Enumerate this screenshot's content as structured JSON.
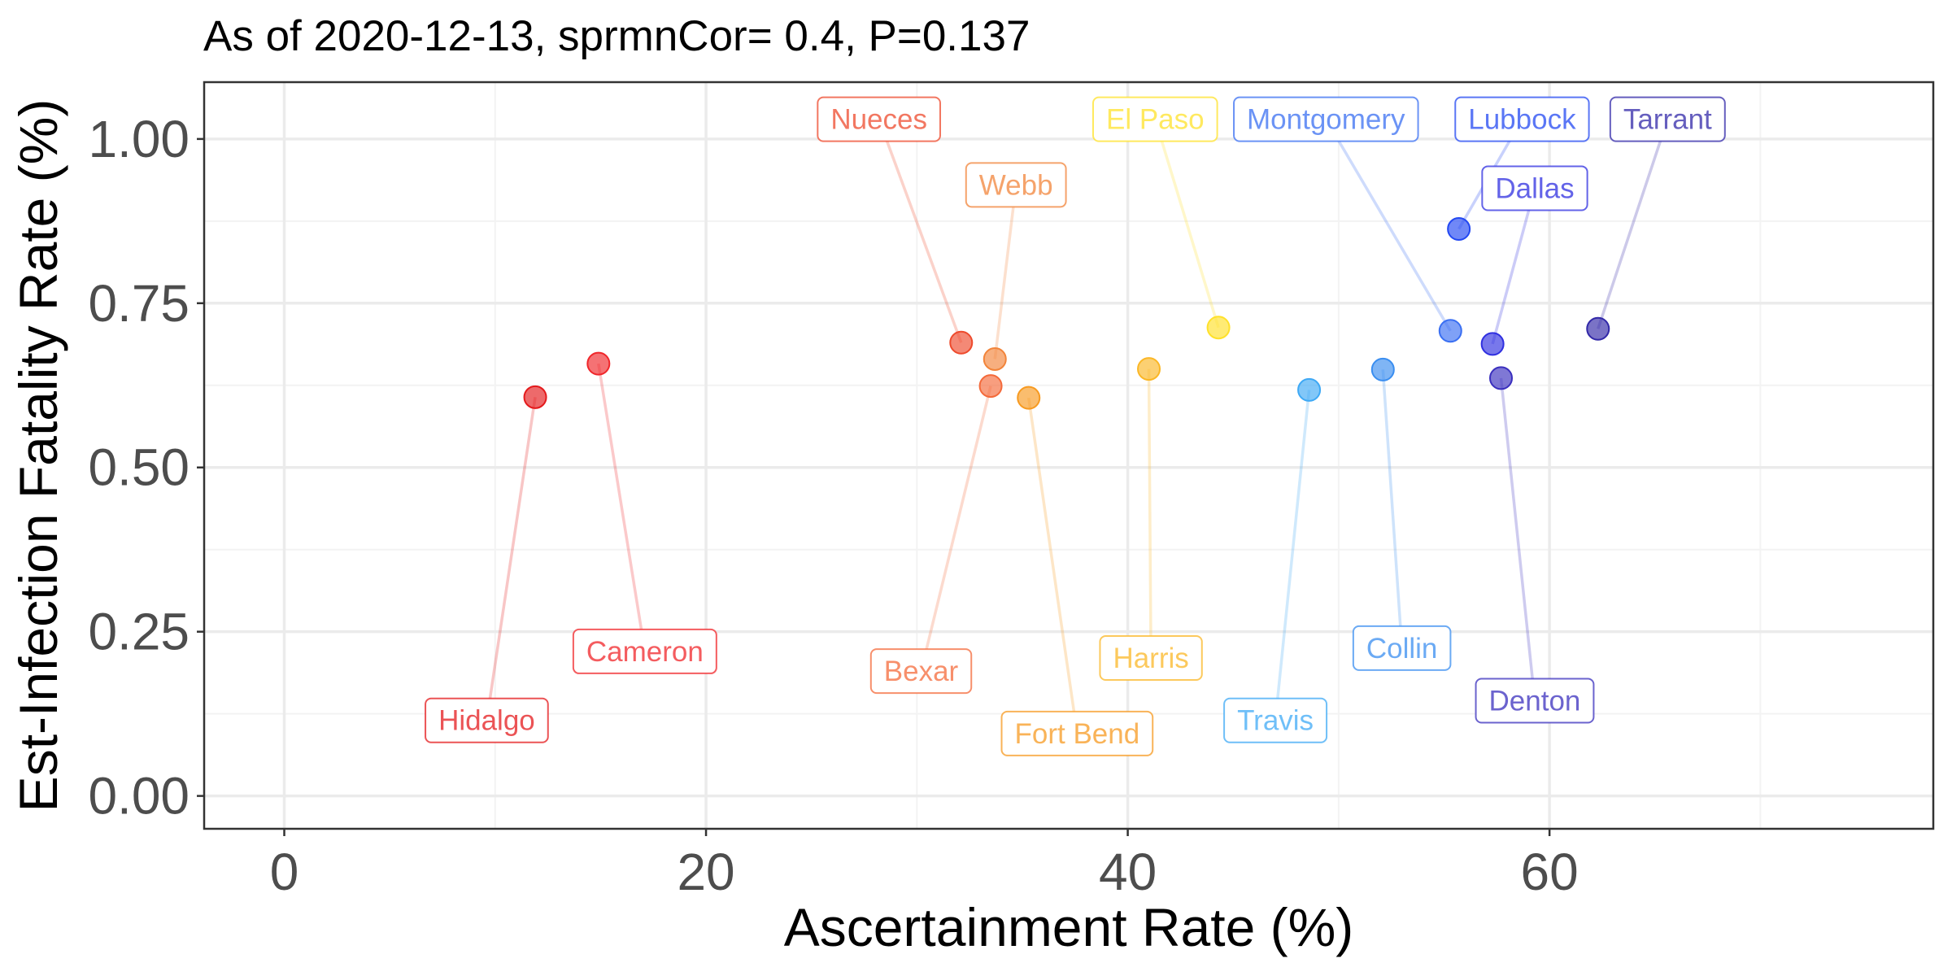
{
  "chart_data": {
    "type": "scatter",
    "title": "As of 2020-12-13, sprmnCor= 0.4, P=0.137",
    "xlabel": "Ascertainment Rate (%)",
    "ylabel": "Est-Infection Fatality Rate (%)",
    "xlim": [
      -3.8,
      78.2
    ],
    "ylim": [
      -0.05,
      1.0865
    ],
    "x_ticks": [
      0,
      20,
      40,
      60
    ],
    "x_tick_labels": [
      "0",
      "20",
      "40",
      "60"
    ],
    "y_ticks": [
      0,
      0.25,
      0.5,
      0.75,
      1.0
    ],
    "y_tick_labels": [
      "0.00",
      "0.25",
      "0.50",
      "0.75",
      "1.00"
    ],
    "grid": true,
    "legend": "none",
    "points": [
      {
        "name": "Hidalgo",
        "x": 11.9,
        "y": 0.607,
        "color": "#e41a1c",
        "label_x": 9.6,
        "label_y": 0.115
      },
      {
        "name": "Cameron",
        "x": 14.9,
        "y": 0.658,
        "color": "#f0262a",
        "label_x": 17.1,
        "label_y": 0.22
      },
      {
        "name": "Nueces",
        "x": 32.1,
        "y": 0.69,
        "color": "#ee4a2c",
        "label_x": 28.2,
        "label_y": 1.03
      },
      {
        "name": "Bexar",
        "x": 33.5,
        "y": 0.624,
        "color": "#f46a3a",
        "label_x": 30.2,
        "label_y": 0.19
      },
      {
        "name": "Webb",
        "x": 33.7,
        "y": 0.665,
        "color": "#f2843a",
        "label_x": 34.7,
        "label_y": 0.93
      },
      {
        "name": "Fort Bend",
        "x": 35.3,
        "y": 0.606,
        "color": "#f79a20",
        "label_x": 37.6,
        "label_y": 0.095
      },
      {
        "name": "Harris",
        "x": 41.0,
        "y": 0.65,
        "color": "#fbb726",
        "label_x": 41.1,
        "label_y": 0.21
      },
      {
        "name": "El Paso",
        "x": 44.3,
        "y": 0.713,
        "color": "#ffe12a",
        "label_x": 41.3,
        "label_y": 1.03
      },
      {
        "name": "Travis",
        "x": 48.6,
        "y": 0.618,
        "color": "#3fa9f5",
        "label_x": 47.0,
        "label_y": 0.115
      },
      {
        "name": "Collin",
        "x": 52.1,
        "y": 0.649,
        "color": "#3a8ef0",
        "label_x": 53.0,
        "label_y": 0.225
      },
      {
        "name": "Montgomery",
        "x": 55.3,
        "y": 0.708,
        "color": "#3a6ff2",
        "label_x": 49.4,
        "label_y": 1.03
      },
      {
        "name": "Lubbock",
        "x": 55.7,
        "y": 0.863,
        "color": "#2348f2",
        "label_x": 58.7,
        "label_y": 1.03
      },
      {
        "name": "Dallas",
        "x": 57.3,
        "y": 0.688,
        "color": "#2f2fe0",
        "label_x": 59.3,
        "label_y": 0.925
      },
      {
        "name": "Denton",
        "x": 57.7,
        "y": 0.636,
        "color": "#3a2fbe",
        "label_x": 59.3,
        "label_y": 0.145
      },
      {
        "name": "Tarrant",
        "x": 62.3,
        "y": 0.711,
        "color": "#3228a8",
        "label_x": 65.6,
        "label_y": 1.03
      }
    ]
  }
}
